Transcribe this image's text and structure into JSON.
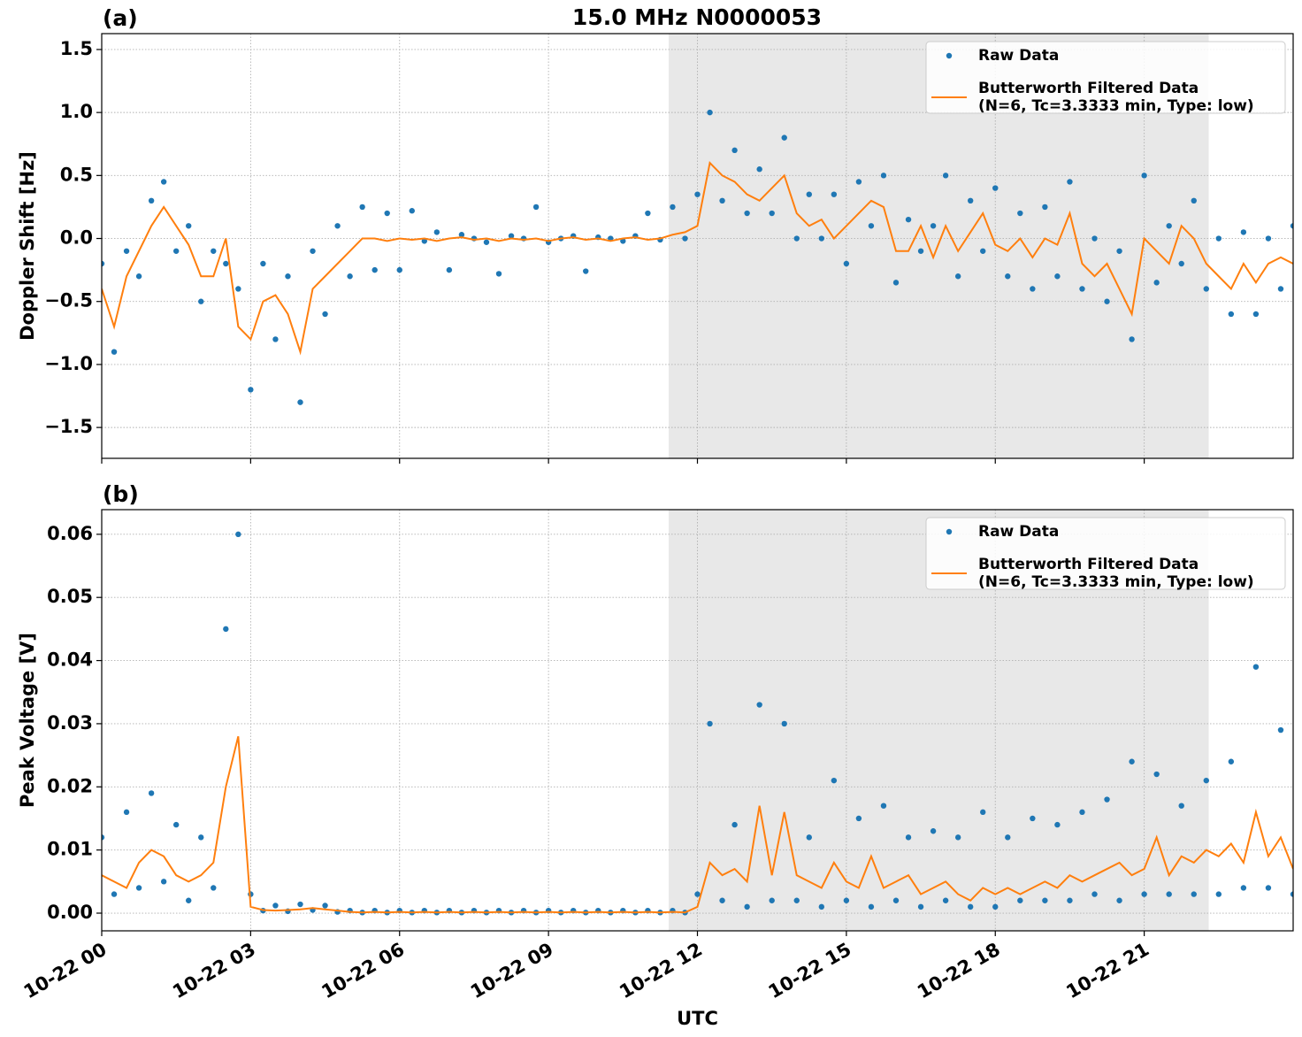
{
  "chart_data": [
    {
      "type": "scatter_line",
      "title": "15.0 MHz N0000053",
      "panel_label": "(a)",
      "ylabel": "Doppler Shift [Hz]",
      "xlim": [
        0,
        24
      ],
      "ylim": [
        -1.745,
        1.626
      ],
      "yticks": [
        {
          "value": -1.5,
          "label": "−1.5"
        },
        {
          "value": -1.0,
          "label": "−1.0"
        },
        {
          "value": -0.5,
          "label": "−0.5"
        },
        {
          "value": 0,
          "label": "0.0"
        },
        0.5,
        {
          "value": 1,
          "label": "1.0"
        },
        1.5
      ],
      "grid": true,
      "legend": "upper right",
      "shaded_span": [
        11.42,
        22.3
      ],
      "shaded_color": "#e8e8e8",
      "x": [
        0,
        0.25,
        0.5,
        0.75,
        1,
        1.25,
        1.5,
        1.75,
        2,
        2.25,
        2.5,
        2.75,
        3,
        3.25,
        3.5,
        3.75,
        4,
        4.25,
        4.5,
        4.75,
        5,
        5.25,
        5.5,
        5.75,
        6,
        6.25,
        6.5,
        6.75,
        7,
        7.25,
        7.5,
        7.75,
        8,
        8.25,
        8.5,
        8.75,
        9,
        9.25,
        9.5,
        9.75,
        10,
        10.25,
        10.5,
        10.75,
        11,
        11.25,
        11.5,
        11.75,
        12,
        12.25,
        12.5,
        12.75,
        13,
        13.25,
        13.5,
        13.75,
        14,
        14.25,
        14.5,
        14.75,
        15,
        15.25,
        15.5,
        15.75,
        16,
        16.25,
        16.5,
        16.75,
        17,
        17.25,
        17.5,
        17.75,
        18,
        18.25,
        18.5,
        18.75,
        19,
        19.25,
        19.5,
        19.75,
        20,
        20.25,
        20.5,
        20.75,
        21,
        21.25,
        21.5,
        21.75,
        22,
        22.25,
        22.5,
        22.75,
        23,
        23.25,
        23.5,
        23.75,
        24
      ],
      "series": [
        {
          "name": "Raw Data",
          "kind": "scatter",
          "color": "#1f77b4",
          "values": [
            -0.2,
            -0.9,
            -0.1,
            -0.3,
            0.3,
            0.45,
            -0.1,
            0.1,
            -0.5,
            -0.1,
            -0.2,
            -0.4,
            -1.2,
            -0.2,
            -0.8,
            -0.3,
            -1.3,
            -0.1,
            -0.6,
            0.1,
            -0.3,
            0.25,
            -0.25,
            0.2,
            -0.25,
            0.22,
            -0.02,
            0.05,
            -0.25,
            0.03,
            0.0,
            -0.03,
            -0.28,
            0.02,
            0.0,
            0.25,
            -0.03,
            0.0,
            0.02,
            -0.26,
            0.01,
            0.0,
            -0.02,
            0.02,
            0.2,
            -0.01,
            0.25,
            0.0,
            0.35,
            1.0,
            0.3,
            0.7,
            0.2,
            0.55,
            0.2,
            0.8,
            0.0,
            0.35,
            0.0,
            0.35,
            -0.2,
            0.45,
            0.1,
            0.5,
            -0.35,
            0.15,
            -0.1,
            0.1,
            0.5,
            -0.3,
            0.3,
            -0.1,
            0.4,
            -0.3,
            0.2,
            -0.4,
            0.25,
            -0.3,
            0.45,
            -0.4,
            0.0,
            -0.5,
            -0.1,
            -0.8,
            0.5,
            -0.35,
            0.1,
            -0.2,
            0.3,
            -0.4,
            0.0,
            -0.6,
            0.05,
            -0.6,
            0.0,
            -0.4,
            0.1
          ]
        },
        {
          "name": "Butterworth Filtered Data\n(N=6, Tc=3.3333 min, Type: low)",
          "kind": "line",
          "color": "#ff7f0e",
          "values": [
            -0.4,
            -0.7,
            -0.3,
            -0.1,
            0.1,
            0.25,
            0.1,
            -0.05,
            -0.3,
            -0.3,
            0.0,
            -0.7,
            -0.8,
            -0.5,
            -0.45,
            -0.6,
            -0.9,
            -0.4,
            -0.3,
            -0.2,
            -0.1,
            0.0,
            0.0,
            -0.02,
            0.0,
            -0.01,
            0.0,
            -0.02,
            0.0,
            0.01,
            -0.01,
            0.0,
            -0.02,
            0.0,
            -0.01,
            0.0,
            -0.02,
            0.0,
            0.01,
            -0.01,
            0.0,
            -0.02,
            0.0,
            0.01,
            -0.01,
            0.0,
            0.03,
            0.05,
            0.1,
            0.6,
            0.5,
            0.45,
            0.35,
            0.3,
            0.4,
            0.5,
            0.2,
            0.1,
            0.15,
            0.0,
            0.1,
            0.2,
            0.3,
            0.25,
            -0.1,
            -0.1,
            0.1,
            -0.15,
            0.1,
            -0.1,
            0.05,
            0.2,
            -0.05,
            -0.1,
            0.0,
            -0.15,
            0.0,
            -0.05,
            0.2,
            -0.2,
            -0.3,
            -0.2,
            -0.4,
            -0.6,
            0.0,
            -0.1,
            -0.2,
            0.1,
            0.0,
            -0.2,
            -0.3,
            -0.4,
            -0.2,
            -0.35,
            -0.2,
            -0.15,
            -0.2
          ]
        }
      ]
    },
    {
      "type": "scatter_line",
      "panel_label": "(b)",
      "ylabel": "Peak Voltage [V]",
      "xlabel": "UTC",
      "xlim": [
        0,
        24
      ],
      "ylim": [
        -0.0028,
        0.0639
      ],
      "xticks": [
        {
          "value": 0,
          "label": "10-22 00"
        },
        {
          "value": 3,
          "label": "10-22 03"
        },
        {
          "value": 6,
          "label": "10-22 06"
        },
        {
          "value": 9,
          "label": "10-22 09"
        },
        {
          "value": 12,
          "label": "10-22 12"
        },
        {
          "value": 15,
          "label": "10-22 15"
        },
        {
          "value": 18,
          "label": "10-22 18"
        },
        {
          "value": 21,
          "label": "10-22 21"
        }
      ],
      "yticks": [
        {
          "value": 0,
          "label": "0.00"
        },
        0.01,
        0.02,
        0.03,
        0.04,
        0.05,
        0.06
      ],
      "grid": true,
      "legend": "upper right",
      "shaded_span": [
        11.42,
        22.3
      ],
      "shaded_color": "#e8e8e8",
      "x": [
        0,
        0.25,
        0.5,
        0.75,
        1,
        1.25,
        1.5,
        1.75,
        2,
        2.25,
        2.5,
        2.75,
        3,
        3.25,
        3.5,
        3.75,
        4,
        4.25,
        4.5,
        4.75,
        5,
        5.25,
        5.5,
        5.75,
        6,
        6.25,
        6.5,
        6.75,
        7,
        7.25,
        7.5,
        7.75,
        8,
        8.25,
        8.5,
        8.75,
        9,
        9.25,
        9.5,
        9.75,
        10,
        10.25,
        10.5,
        10.75,
        11,
        11.25,
        11.5,
        11.75,
        12,
        12.25,
        12.5,
        12.75,
        13,
        13.25,
        13.5,
        13.75,
        14,
        14.25,
        14.5,
        14.75,
        15,
        15.25,
        15.5,
        15.75,
        16,
        16.25,
        16.5,
        16.75,
        17,
        17.25,
        17.5,
        17.75,
        18,
        18.25,
        18.5,
        18.75,
        19,
        19.25,
        19.5,
        19.75,
        20,
        20.25,
        20.5,
        20.75,
        21,
        21.25,
        21.5,
        21.75,
        22,
        22.25,
        22.5,
        22.75,
        23,
        23.25,
        23.5,
        23.75,
        24
      ],
      "series": [
        {
          "name": "Raw Data",
          "kind": "scatter",
          "color": "#1f77b4",
          "values": [
            0.012,
            0.003,
            0.016,
            0.004,
            0.019,
            0.005,
            0.014,
            0.002,
            0.012,
            0.004,
            0.045,
            0.06,
            0.003,
            0.0004,
            0.0012,
            0.0003,
            0.0014,
            0.0005,
            0.0012,
            0.0002,
            0.0004,
            0.0001,
            0.0004,
            0.0001,
            0.0004,
            0.0001,
            0.0004,
            0.0001,
            0.0004,
            0.0001,
            0.0004,
            0.0001,
            0.0004,
            0.0001,
            0.0004,
            0.0001,
            0.0004,
            0.0001,
            0.0004,
            0.0001,
            0.0004,
            0.0001,
            0.0004,
            0.0001,
            0.0004,
            0.0001,
            0.0004,
            0.0001,
            0.003,
            0.03,
            0.002,
            0.014,
            0.001,
            0.033,
            0.002,
            0.03,
            0.002,
            0.012,
            0.001,
            0.021,
            0.002,
            0.015,
            0.001,
            0.017,
            0.002,
            0.012,
            0.001,
            0.013,
            0.002,
            0.012,
            0.001,
            0.016,
            0.001,
            0.012,
            0.002,
            0.015,
            0.002,
            0.014,
            0.002,
            0.016,
            0.003,
            0.018,
            0.002,
            0.024,
            0.003,
            0.022,
            0.003,
            0.017,
            0.003,
            0.021,
            0.003,
            0.024,
            0.004,
            0.039,
            0.004,
            0.029,
            0.003
          ]
        },
        {
          "name": "Butterworth Filtered Data\n(N=6, Tc=3.3333 min, Type: low)",
          "kind": "line",
          "color": "#ff7f0e",
          "values": [
            0.006,
            0.005,
            0.004,
            0.008,
            0.01,
            0.009,
            0.006,
            0.005,
            0.006,
            0.008,
            0.02,
            0.028,
            0.001,
            0.0005,
            0.0004,
            0.0005,
            0.0006,
            0.0008,
            0.0006,
            0.0004,
            0.0002,
            0.0001,
            0.0002,
            0.0001,
            0.0002,
            0.0001,
            0.0002,
            0.0001,
            0.0002,
            0.0001,
            0.0002,
            0.0001,
            0.0002,
            0.0001,
            0.0002,
            0.0001,
            0.0002,
            0.0001,
            0.0002,
            0.0001,
            0.0002,
            0.0001,
            0.0002,
            0.0001,
            0.0002,
            0.0001,
            0.0002,
            0.0001,
            0.001,
            0.008,
            0.006,
            0.007,
            0.005,
            0.017,
            0.006,
            0.016,
            0.006,
            0.005,
            0.004,
            0.008,
            0.005,
            0.004,
            0.009,
            0.004,
            0.005,
            0.006,
            0.003,
            0.004,
            0.005,
            0.003,
            0.002,
            0.004,
            0.003,
            0.004,
            0.003,
            0.004,
            0.005,
            0.004,
            0.006,
            0.005,
            0.006,
            0.007,
            0.008,
            0.006,
            0.007,
            0.012,
            0.006,
            0.009,
            0.008,
            0.01,
            0.009,
            0.011,
            0.008,
            0.016,
            0.009,
            0.012,
            0.007
          ]
        }
      ]
    }
  ]
}
